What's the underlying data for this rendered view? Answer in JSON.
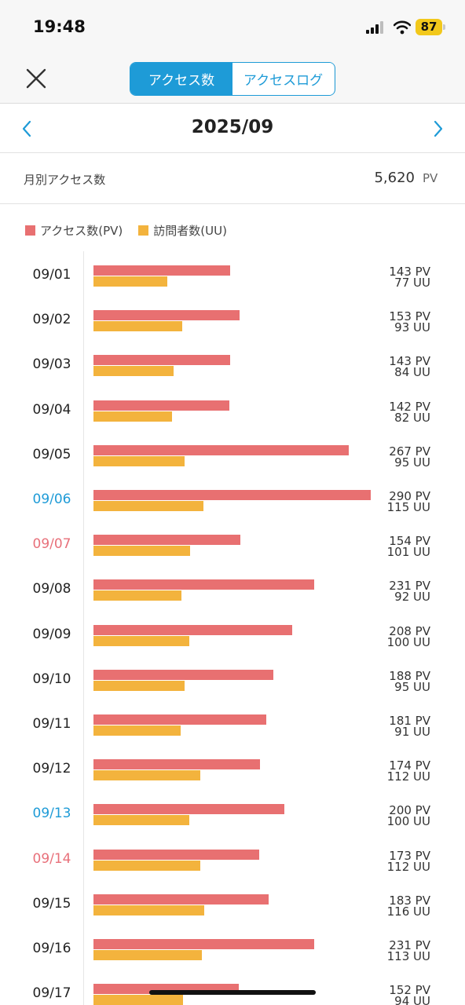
{
  "status_bar": {
    "time": "19:48",
    "battery": "87"
  },
  "nav": {
    "tabs": [
      {
        "label": "アクセス数",
        "active": true
      },
      {
        "label": "アクセスログ",
        "active": false
      }
    ]
  },
  "month": {
    "title": "2025/09"
  },
  "monthly": {
    "label": "月別アクセス数",
    "value": "5,620",
    "unit": "PV"
  },
  "colors": {
    "accent": "#1e9bd7",
    "pv": "#e87071",
    "uu": "#f3b33d",
    "saturday": "#1e9bd7",
    "sunday": "#e8707a"
  },
  "chart_data": {
    "type": "bar",
    "orientation": "horizontal",
    "legend": {
      "pv": "アクセス数(PV)",
      "uu": "訪問者数(UU)",
      "position": "top-left"
    },
    "units": {
      "pv": "PV",
      "uu": "UU"
    },
    "xlim": [
      0,
      290
    ],
    "days": [
      {
        "date": "09/01",
        "pv": 143,
        "uu": 77,
        "dow": "weekday"
      },
      {
        "date": "09/02",
        "pv": 153,
        "uu": 93,
        "dow": "weekday"
      },
      {
        "date": "09/03",
        "pv": 143,
        "uu": 84,
        "dow": "weekday"
      },
      {
        "date": "09/04",
        "pv": 142,
        "uu": 82,
        "dow": "weekday"
      },
      {
        "date": "09/05",
        "pv": 267,
        "uu": 95,
        "dow": "weekday"
      },
      {
        "date": "09/06",
        "pv": 290,
        "uu": 115,
        "dow": "sat"
      },
      {
        "date": "09/07",
        "pv": 154,
        "uu": 101,
        "dow": "sun"
      },
      {
        "date": "09/08",
        "pv": 231,
        "uu": 92,
        "dow": "weekday"
      },
      {
        "date": "09/09",
        "pv": 208,
        "uu": 100,
        "dow": "weekday"
      },
      {
        "date": "09/10",
        "pv": 188,
        "uu": 95,
        "dow": "weekday"
      },
      {
        "date": "09/11",
        "pv": 181,
        "uu": 91,
        "dow": "weekday"
      },
      {
        "date": "09/12",
        "pv": 174,
        "uu": 112,
        "dow": "weekday"
      },
      {
        "date": "09/13",
        "pv": 200,
        "uu": 100,
        "dow": "sat"
      },
      {
        "date": "09/14",
        "pv": 173,
        "uu": 112,
        "dow": "sun"
      },
      {
        "date": "09/15",
        "pv": 183,
        "uu": 116,
        "dow": "weekday"
      },
      {
        "date": "09/16",
        "pv": 231,
        "uu": 113,
        "dow": "weekday"
      },
      {
        "date": "09/17",
        "pv": 152,
        "uu": 94,
        "dow": "weekday"
      }
    ]
  }
}
